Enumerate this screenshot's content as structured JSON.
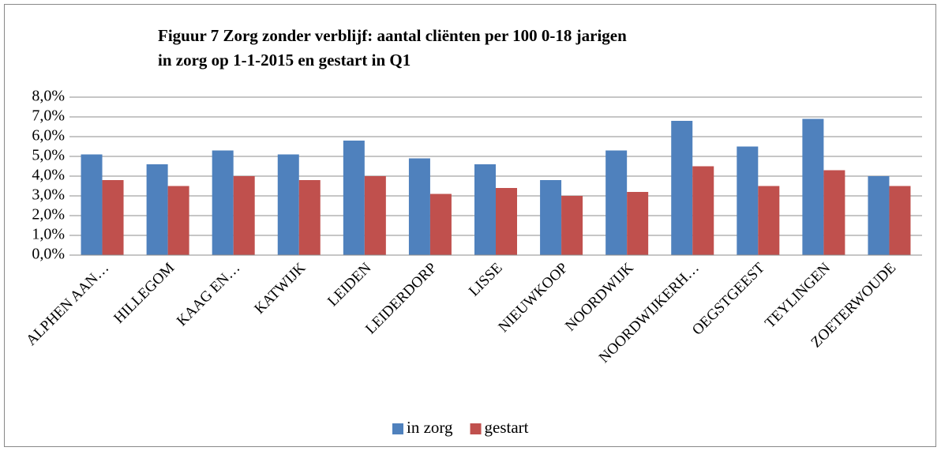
{
  "chart_data": {
    "type": "bar",
    "title": [
      "Figuur 7 Zorg zonder verblijf: aantal cliënten per 100 0-18 jarigen",
      "in zorg op 1-1-2015 en gestart in Q1"
    ],
    "categories": [
      "ALPHEN AAN…",
      "HILLEGOM",
      "KAAG EN…",
      "KATWIJK",
      "LEIDEN",
      "LEIDERDORP",
      "LISSE",
      "NIEUWKOOP",
      "NOORDWIJK",
      "NOORDWIJKERH…",
      "OEGSTGEEST",
      "TEYLINGEN",
      "ZOETERWOUDE"
    ],
    "series": [
      {
        "name": "in zorg",
        "color": "#4f81bd",
        "values": [
          5.1,
          4.6,
          5.3,
          5.1,
          5.8,
          4.9,
          4.6,
          3.8,
          5.3,
          6.8,
          5.5,
          6.9,
          4.0
        ]
      },
      {
        "name": "gestart",
        "color": "#c0504d",
        "values": [
          3.8,
          3.5,
          4.0,
          3.8,
          4.0,
          3.1,
          3.4,
          3.0,
          3.2,
          4.5,
          3.5,
          4.3,
          3.5
        ]
      }
    ],
    "ylim": [
      0,
      8
    ],
    "yticks": [
      {
        "value": 0,
        "label": "0,0%"
      },
      {
        "value": 1,
        "label": "1,0%"
      },
      {
        "value": 2,
        "label": "2,0%"
      },
      {
        "value": 3,
        "label": "3,0%"
      },
      {
        "value": 4,
        "label": "4,0%"
      },
      {
        "value": 5,
        "label": "5,0%"
      },
      {
        "value": 6,
        "label": "6,0%"
      },
      {
        "value": 7,
        "label": "7,0%"
      },
      {
        "value": 8,
        "label": "8,0%"
      }
    ],
    "grid": true,
    "legend": "bottom"
  }
}
